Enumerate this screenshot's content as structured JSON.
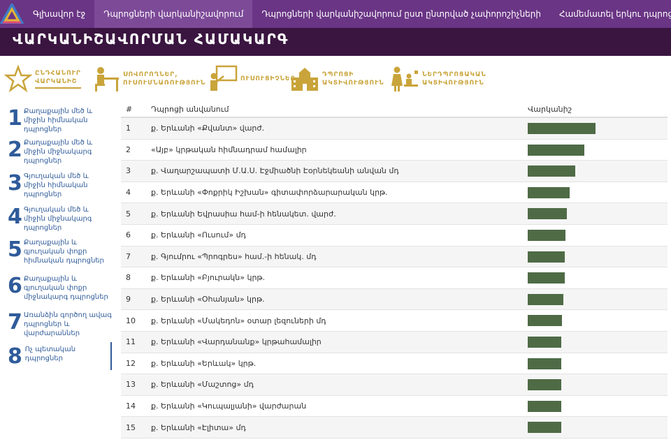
{
  "nav": {
    "items": [
      {
        "label": "Գլխավոր էջ",
        "active": false
      },
      {
        "label": "Դպրոցների վարկանիշավորում",
        "active": true
      },
      {
        "label": "Դպրոցների վարկանիշավորում ըստ ընտրված չափորոշիչների",
        "active": false
      },
      {
        "label": "Համեմատել երկու դպրոց",
        "active": false
      }
    ]
  },
  "banner": {
    "title": "ՎԱՐԿԱՆԻՇԱՎՈՐՄԱՆ ՀԱՄԱԿԱՐԳ"
  },
  "categories": [
    {
      "line1": "ԸՆԴՀԱՆՈՒՐ",
      "line2": "ՎԱՐԿԱՆԻՇ",
      "icon": "star-icon",
      "active": true
    },
    {
      "line1": "ՍՈՎՈՐՈՂՆԵՐ,",
      "line2": "ՈՒՍՈՒՄՆԱՌՈՒԹՅՈՒՆ",
      "icon": "student-desk-icon",
      "active": false
    },
    {
      "line1": "",
      "line2": "ՈՒՍՈՒՑԻՉՆԵՐ",
      "icon": "teacher-board-icon",
      "active": false
    },
    {
      "line1": "ԴՊՐՈՑԻ",
      "line2": "ԱԿՏԻՎՈՒԹՅՈՒՆ",
      "icon": "school-building-icon",
      "active": false
    },
    {
      "line1": "ՆԵՐԴՊՐՈՑԱԿԱՆ",
      "line2": "ԱԿՏԻՎՈՒԹՅՈՒՆ",
      "icon": "people-activity-icon",
      "active": false
    }
  ],
  "sidebar": {
    "items": [
      {
        "num": "1",
        "label": "Քաղաքային մեծ և միջին հիմնական դպրոցներ",
        "active": false
      },
      {
        "num": "2",
        "label": "Քաղաքային մեծ և միջին միջնակարգ դպրոցներ",
        "active": false
      },
      {
        "num": "3",
        "label": "Գյուղական մեծ և միջին հիմնական դպրոցներ",
        "active": false
      },
      {
        "num": "4",
        "label": "Գյուղական մեծ և միջին միջնակարգ դպրոցներ",
        "active": false
      },
      {
        "num": "5",
        "label": "Քաղաքային և գյուղական փոքր հիմնական դպրոցներ",
        "active": false
      },
      {
        "num": "6",
        "label": "Քաղաքային և գյուղական փոքր միջնակարգ դպրոցներ",
        "active": false
      },
      {
        "num": "7",
        "label": "Առանձին գործող ավագ դպրոցներ և վարժարաններ",
        "active": false
      },
      {
        "num": "8",
        "label": "Ոչ պետական դպրոցներ",
        "active": true
      }
    ]
  },
  "table": {
    "headers": {
      "num": "#",
      "name": "Դպրոցի անվանում",
      "rating": "Վարկանիշ"
    },
    "bar_color": "#4f6b46",
    "rows": [
      {
        "num": "1",
        "name": "ք. Երևանի «Քվանտ» վարժ.",
        "rating": 0.99
      },
      {
        "num": "2",
        "name": "«Այբ» կրթական հիմնադրամ համալիր",
        "rating": 0.83
      },
      {
        "num": "3",
        "name": "ք. Վաղարշապատի Մ.Ա.Ս. Էջմիածնի Էօրնեկեանի անվան մդ",
        "rating": 0.69
      },
      {
        "num": "4",
        "name": "ք. Երևանի «Փոքրիկ Իշխան» գիտափորձարարական կրթ.",
        "rating": 0.61
      },
      {
        "num": "5",
        "name": "ք. Երևանի Եվրասիա համ-ի հենակետ. վարժ.",
        "rating": 0.57
      },
      {
        "num": "6",
        "name": "ք. Երևանի «Ուսում» մդ",
        "rating": 0.55
      },
      {
        "num": "7",
        "name": "ք. Գյումրու «Պրոգրես» համ.-ի հենակ. մդ",
        "rating": 0.54
      },
      {
        "num": "8",
        "name": "ք. Երևանի «Բյուրակն» կրթ.",
        "rating": 0.54
      },
      {
        "num": "9",
        "name": "ք. Երևանի «Օհանյան» կրթ.",
        "rating": 0.52
      },
      {
        "num": "10",
        "name": "ք. Երևանի «Մակեդոն» օտար լեզուների մդ",
        "rating": 0.5
      },
      {
        "num": "11",
        "name": "ք. Երևանի «Վարդանանք» կրթահամալիր",
        "rating": 0.49
      },
      {
        "num": "12",
        "name": "ք. Երևանի «Երևակ» կրթ.",
        "rating": 0.49
      },
      {
        "num": "13",
        "name": "ք. Երևանի «Մաշտոց» մդ",
        "rating": 0.49
      },
      {
        "num": "14",
        "name": "ք. Երևանի «Կուպալյանի» վարժարան",
        "rating": 0.49
      },
      {
        "num": "15",
        "name": "ք. Երևանի «Էլիտա» մդ",
        "rating": 0.49
      }
    ]
  }
}
